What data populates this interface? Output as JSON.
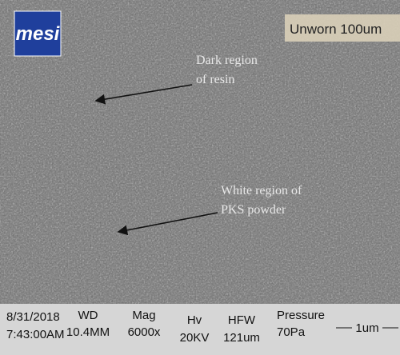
{
  "logo": "mesi",
  "sample_label": "Unworn 100um",
  "annotations": [
    {
      "lines": [
        "Dark region",
        "of resin"
      ]
    },
    {
      "lines": [
        "White region of",
        "PKS powder"
      ]
    }
  ],
  "info_bar": {
    "date": "8/31/2018",
    "time": "7:43:00AM",
    "fields": [
      {
        "label": "WD",
        "value": "10.4MM"
      },
      {
        "label": "Mag",
        "value": "6000x"
      },
      {
        "label": "Hv",
        "value": "20KV"
      },
      {
        "label": "HFW",
        "value": "121um"
      },
      {
        "label": "Pressure",
        "value": "70Pa"
      }
    ],
    "scale_bar": "1um"
  }
}
